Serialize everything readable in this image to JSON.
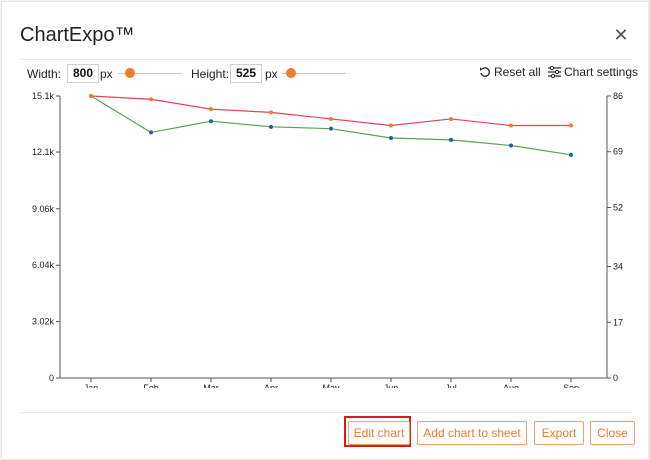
{
  "dialog": {
    "title": "ChartExpo™",
    "close_glyph": "✕"
  },
  "toolbar": {
    "width_label": "Width:",
    "width_value": "800",
    "width_unit": "px",
    "height_label": "Height:",
    "height_value": "525",
    "height_unit": "px",
    "reset_label": "Reset all",
    "settings_label": "Chart settings"
  },
  "footer": {
    "edit_label": "Edit chart",
    "add_label": "Add chart to sheet",
    "export_label": "Export",
    "close_label": "Close"
  },
  "colors": {
    "accent": "#ef7a32",
    "highlight": "#d81b1b"
  },
  "chart_data": {
    "type": "line",
    "categories": [
      "Jan",
      "Feb",
      "Mar",
      "Apr",
      "May",
      "Jun",
      "Jul",
      "Aug",
      "Sep"
    ],
    "series": [
      {
        "axis": "left",
        "color": "#5aa05a",
        "marker_color": "#1f5f9f",
        "values": [
          15100,
          13150,
          13750,
          13450,
          13350,
          12850,
          12750,
          12450,
          11950
        ]
      },
      {
        "axis": "right",
        "color": "#e0445a",
        "marker_color": "#f07b2b",
        "values": [
          86,
          85,
          82,
          81,
          79,
          77,
          79,
          77,
          77
        ]
      }
    ],
    "y_left": {
      "ticks": [
        0,
        3020,
        6040,
        9060,
        12100,
        15100
      ],
      "tick_labels": [
        "0",
        "3.02k",
        "6.04k",
        "9.06k",
        "12.1k",
        "15.1k"
      ],
      "ylim": [
        0,
        15100
      ]
    },
    "y_right": {
      "ticks": [
        0,
        17,
        34,
        52,
        69,
        86
      ],
      "tick_labels": [
        "0",
        "17",
        "34",
        "52",
        "69",
        "86"
      ],
      "ylim": [
        0,
        86
      ]
    },
    "grid": false,
    "legend": "none"
  }
}
